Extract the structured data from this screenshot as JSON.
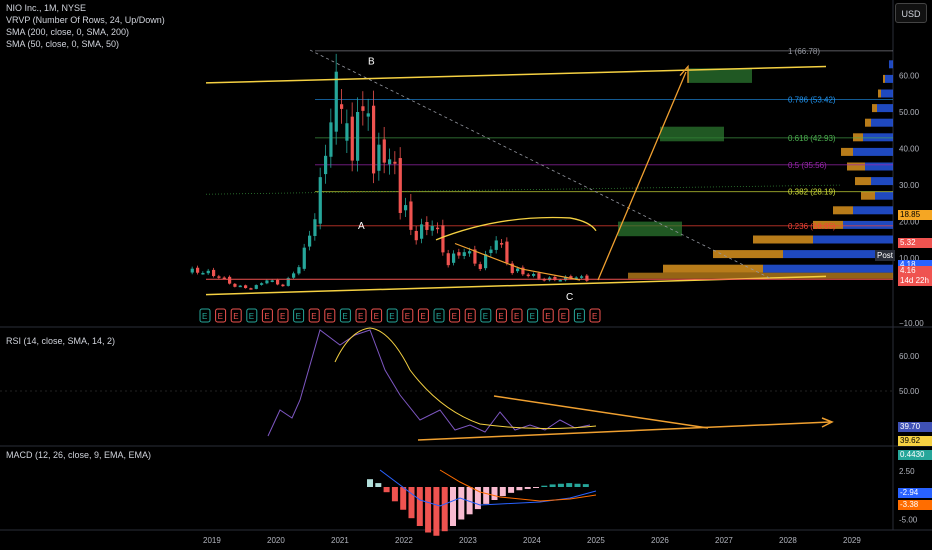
{
  "header": {
    "symbol_line": "NIO Inc., 1M, NYSE",
    "indicators": [
      "VRVP (Number Of Rows, 24, Up/Down)",
      "SMA (200, close, 0, SMA, 200)",
      "SMA (50, close, 0, SMA, 50)"
    ],
    "currency": "USD"
  },
  "rsi_legend": "RSI (14, close, SMA, 14, 2)",
  "macd_legend": "MACD (12, 26, close, 9, EMA, EMA)",
  "colors": {
    "up": "#26a69a",
    "down": "#ef5350",
    "channel": "#f5d142",
    "arrow": "#f0a030",
    "fib": "#b2b5be",
    "rsi": "#7e57c2",
    "bg": "#000000"
  },
  "price_axis": {
    "ticks": [
      "60.00",
      "50.00",
      "40.00",
      "30.00",
      "20.00",
      "10.00"
    ],
    "zero_label": "10.00"
  },
  "price_tags": [
    {
      "label": "18.85",
      "bg": "#f5a623",
      "fg": "#000"
    },
    {
      "label": "5.32",
      "bg": "#ef5350",
      "fg": "#fff"
    },
    {
      "label": "4.18",
      "bg": "#2962ff",
      "fg": "#fff"
    },
    {
      "label": "4.16",
      "bg": "#ef5350",
      "fg": "#fff"
    },
    {
      "label": "14d 22h",
      "bg": "#ef5350",
      "fg": "#fff"
    }
  ],
  "post_label": "Post",
  "fib_levels": [
    {
      "label": "1 (66.78)",
      "color": "#9598a1"
    },
    {
      "label": "0.786 (53.42)",
      "color": "#2196f3"
    },
    {
      "label": "0.618 (42.93)",
      "color": "#4caf50"
    },
    {
      "label": "0.5 (35.56)",
      "color": "#9c27b0"
    },
    {
      "label": "0.382 (28.19)",
      "color": "#cddc39"
    },
    {
      "label": "0.236 (18.85)",
      "color": "#f44336"
    }
  ],
  "wave_labels": {
    "a": "A",
    "b": "B",
    "c": "C"
  },
  "earnings_markers": [
    "E",
    "E",
    "E",
    "E",
    "E",
    "E",
    "E",
    "E",
    "E",
    "E",
    "E",
    "E",
    "E",
    "E",
    "E",
    "E",
    "E",
    "E",
    "E",
    "E",
    "E",
    "E",
    "E",
    "E",
    "E",
    "E"
  ],
  "rsi_axis": {
    "ticks": [
      "60.00",
      "50.00",
      "40.00"
    ],
    "tags": [
      {
        "label": "39.70",
        "bg": "#3f51b5"
      },
      {
        "label": "39.62",
        "bg": "#f5d142"
      }
    ]
  },
  "macd_axis": {
    "ticks": [
      "2.50",
      "-2.50",
      "-5.00"
    ],
    "tags": [
      {
        "label": "0.4430",
        "bg": "#26a69a"
      },
      {
        "label": "-2.94",
        "bg": "#2962ff"
      },
      {
        "label": "-3.38",
        "bg": "#ff6d00"
      }
    ]
  },
  "time_axis": [
    "2019",
    "2020",
    "2021",
    "2022",
    "2023",
    "2024",
    "2025",
    "2026",
    "2027",
    "2028",
    "2029"
  ],
  "chart_data": {
    "type": "candlestick",
    "timeframe": "1M",
    "y_scale": "price (USD)",
    "ylim": [
      -10,
      70
    ],
    "x_range": [
      "2018-09",
      "2029-12"
    ],
    "monthly_close": [
      [
        "2018-09",
        6.6
      ],
      [
        "2018-12",
        6.4
      ],
      [
        "2019-03",
        5.1
      ],
      [
        "2019-06",
        2.5
      ],
      [
        "2019-09",
        1.7
      ],
      [
        "2019-12",
        4.0
      ],
      [
        "2020-03",
        2.6
      ],
      [
        "2020-06",
        7.7
      ],
      [
        "2020-09",
        21.2
      ],
      [
        "2020-12",
        48.7
      ],
      [
        "2021-01",
        56.9
      ],
      [
        "2021-02",
        46.0
      ],
      [
        "2021-04",
        40.0
      ],
      [
        "2021-06",
        53.2
      ],
      [
        "2021-08",
        37.0
      ],
      [
        "2021-11",
        39.7
      ],
      [
        "2022-01",
        25.2
      ],
      [
        "2022-04",
        16.7
      ],
      [
        "2022-07",
        20.0
      ],
      [
        "2022-10",
        9.5
      ],
      [
        "2023-01",
        12.3
      ],
      [
        "2023-04",
        7.9
      ],
      [
        "2023-07",
        15.4
      ],
      [
        "2023-10",
        7.0
      ],
      [
        "2024-01",
        5.6
      ],
      [
        "2024-04",
        4.3
      ],
      [
        "2024-07",
        4.3
      ],
      [
        "2024-10",
        5.0
      ],
      [
        "2024-12",
        4.16
      ]
    ],
    "rsi": {
      "last": 39.7,
      "signal_last": 39.62
    },
    "macd": {
      "hist_last": 0.443,
      "macd_last": -2.94,
      "signal_last": -3.38
    }
  }
}
